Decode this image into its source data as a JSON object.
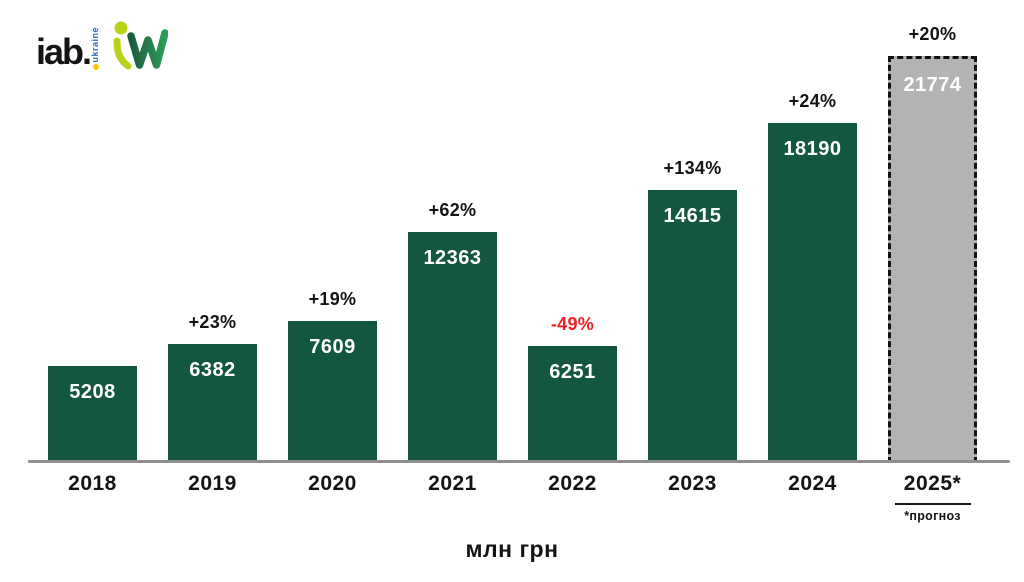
{
  "logo": {
    "iab_text": "iab.",
    "ukraine_text": "ukraine"
  },
  "chart_data": {
    "type": "bar",
    "title": "",
    "categories": [
      "2018",
      "2019",
      "2020",
      "2021",
      "2022",
      "2023",
      "2024",
      "2025*"
    ],
    "values": [
      5208,
      6382,
      7609,
      12363,
      6251,
      14615,
      18190,
      21774
    ],
    "pct_change": [
      "",
      "+23%",
      "+19%",
      "+62%",
      "-49%",
      "+134%",
      "+24%",
      "+20%"
    ],
    "forecast_index": 7,
    "footnote": "*прогноз",
    "xlabel": "млн грн",
    "ylim": [
      0,
      21774
    ],
    "grid": false,
    "legend": false,
    "colors": {
      "bar": "#12573e",
      "forecast_bar": "#b3b3b3",
      "forecast_border": "#121212",
      "value_label": "#ffffff",
      "pct_positive": "#141414",
      "pct_negative": "#ec2024",
      "axis_line": "#8f8f8f"
    }
  }
}
